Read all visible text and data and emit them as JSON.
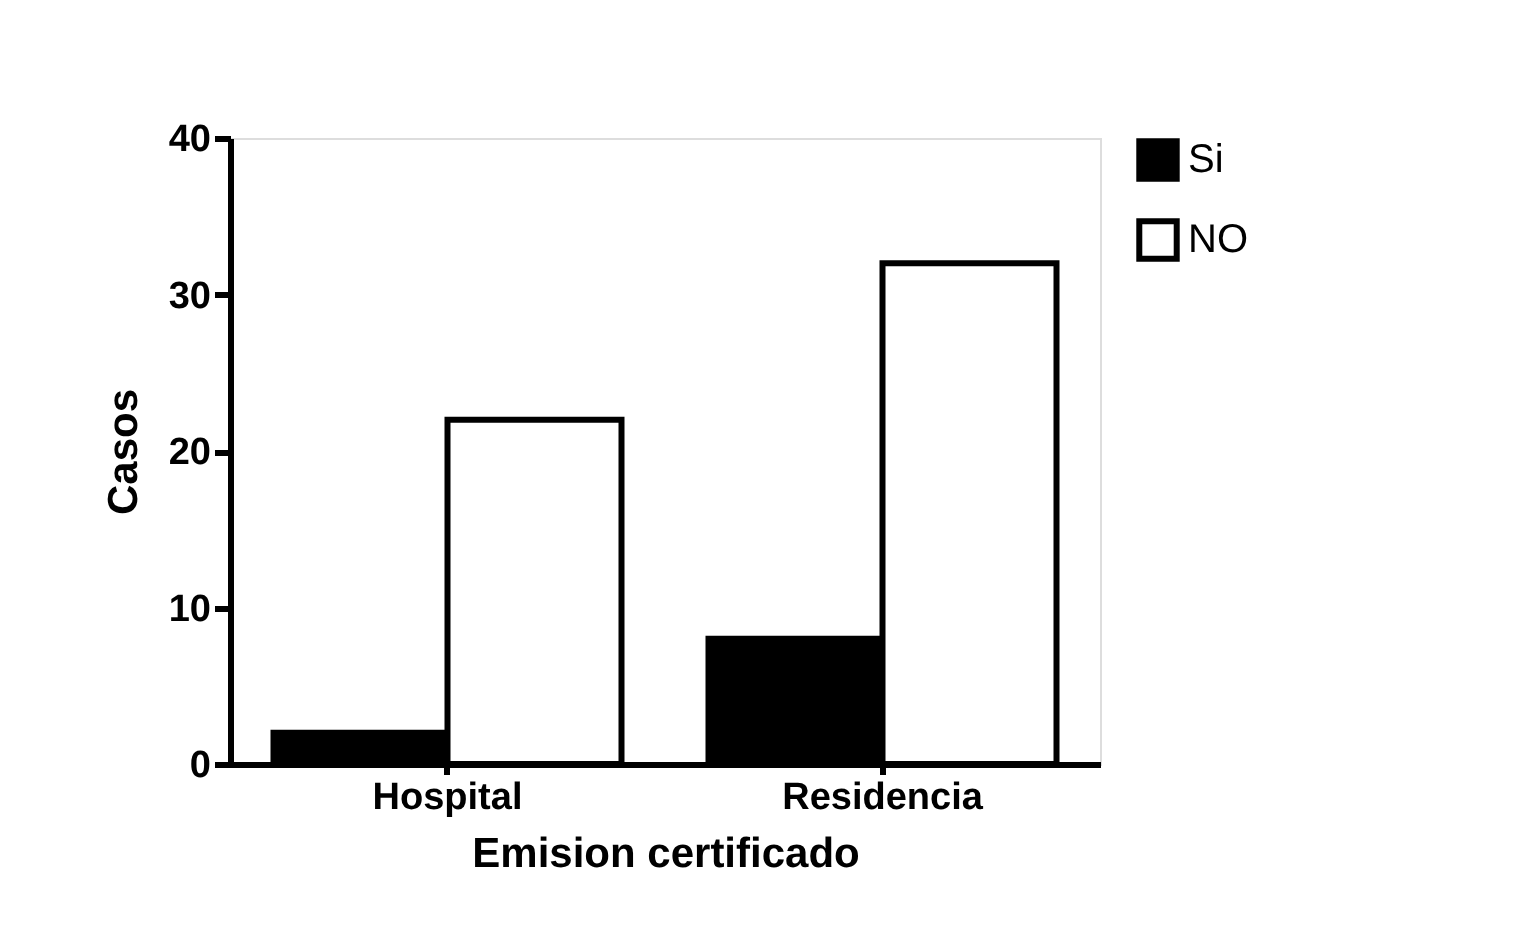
{
  "chart_data": {
    "type": "bar",
    "xlabel": "Emision certificado",
    "ylabel": "Casos",
    "categories": [
      "Hospital",
      "Residencia"
    ],
    "series": [
      {
        "name": "Si",
        "color": "#000000",
        "values": [
          2,
          8
        ]
      },
      {
        "name": "NO",
        "color": "#ffffff",
        "values": [
          22,
          32
        ]
      }
    ],
    "ylim": [
      0,
      40
    ],
    "yticks": [
      0,
      10,
      20,
      30,
      40
    ],
    "grid": false,
    "legend": "top right"
  }
}
